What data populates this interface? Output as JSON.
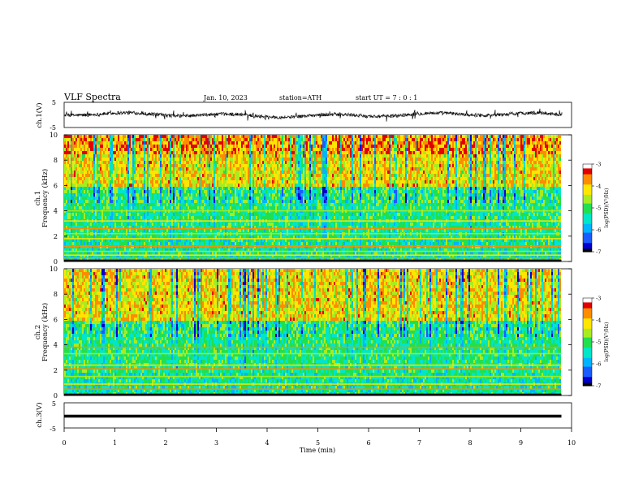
{
  "header": {
    "title": "VLF  Spectra",
    "date": "Jan. 10, 2023",
    "station": "station=ATH",
    "start": "start  UT  =    7  : 0   : 1"
  },
  "axes": {
    "xlabel": "Time  (min)",
    "ch1_wave_label": "ch.1(V)",
    "ch1_spec_label_line1": "ch.1",
    "ch1_spec_label_line2": "Frequency  (kHz)",
    "ch2_spec_label_line1": "ch.2",
    "ch2_spec_label_line2": "Frequency  (kHz)",
    "ch3_wave_label": "ch.3(V)",
    "colorbar_label": "log(PSD)(V²/Hz)"
  },
  "colors": {
    "spectrogram_scale": [
      "#000000",
      "#0000d0",
      "#1a5cff",
      "#00b4ff",
      "#00e6c8",
      "#20e050",
      "#a8ec20",
      "#ffe600",
      "#ff8c00",
      "#e00000",
      "#ffffff"
    ],
    "waveform": "#000000"
  },
  "chart_data": [
    {
      "type": "line",
      "name": "ch1-waveform",
      "x_range": [
        0,
        10
      ],
      "ylim": [
        -5,
        5
      ],
      "yticks": [
        "5",
        "-5"
      ],
      "y_values_summary": {
        "baseline": 0,
        "approx_amplitude": 1.5
      },
      "ylabel": "ch.1(V)"
    },
    {
      "type": "heatmap",
      "name": "ch1-spectrogram",
      "x_range": [
        0,
        9.8
      ],
      "ylim": [
        0,
        10
      ],
      "yticks": [
        "0",
        "2",
        "4",
        "6",
        "8",
        "10"
      ],
      "ylabel": "Frequency  (kHz)",
      "colorbar": {
        "range": [
          -7,
          -3
        ],
        "ticks": [
          "-3",
          "-4",
          "-5",
          "-6",
          "-7"
        ]
      },
      "features": {
        "high_freq_band_kHz": [
          6,
          10
        ],
        "mid_band_kHz": [
          2,
          4.8
        ],
        "low_band_kHz": [
          0,
          2
        ],
        "narrowband_lines_kHz": [
          0.3,
          0.5,
          0.8,
          1.2,
          1.8,
          2.2,
          2.6,
          3.2,
          4.0
        ]
      }
    },
    {
      "type": "heatmap",
      "name": "ch2-spectrogram",
      "x_range": [
        0,
        9.8
      ],
      "ylim": [
        0,
        10
      ],
      "yticks": [
        "0",
        "2",
        "4",
        "6",
        "8",
        "10"
      ],
      "ylabel": "Frequency  (kHz)",
      "colorbar": {
        "range": [
          -7,
          -3
        ],
        "ticks": [
          "-3",
          "-4",
          "-5",
          "-6",
          "-7"
        ]
      },
      "features": {
        "high_freq_band_kHz": [
          6,
          10
        ],
        "mid_band_kHz": [
          2,
          4.8
        ],
        "low_band_kHz": [
          0,
          2
        ],
        "narrowband_lines_kHz": [
          0.5,
          0.9,
          1.5,
          2.1,
          2.4,
          3.3,
          3.8
        ]
      }
    },
    {
      "type": "line",
      "name": "ch3-waveform",
      "x_range": [
        0,
        9.8
      ],
      "ylim": [
        -5,
        5
      ],
      "yticks": [
        "5",
        "-5"
      ],
      "y_values_summary": {
        "constant_value": -0.3
      },
      "ylabel": "ch.3(V)"
    }
  ],
  "xaxis": {
    "range": [
      0,
      10
    ],
    "ticks": [
      "0",
      "1",
      "2",
      "3",
      "4",
      "5",
      "6",
      "7",
      "8",
      "9",
      "10"
    ]
  }
}
